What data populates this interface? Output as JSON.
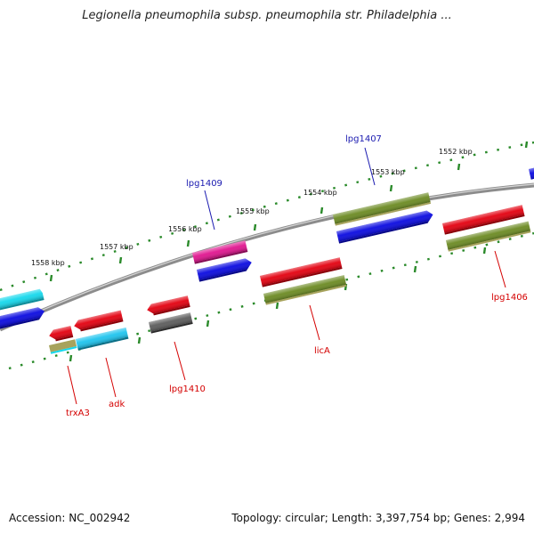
{
  "title": "Legionella pneumophila subsp. pneumophila str. Philadelphia ...",
  "footer": {
    "accession": "Accession: NC_002942",
    "summary": "Topology: circular; Length: 3,397,754 bp; Genes: 2,994"
  },
  "colors": {
    "red": "#e3000f",
    "blue": "#0a0ae0",
    "olive": "#6b8a22",
    "cyan": "#15d8ec",
    "magenta": "#e0158f",
    "gray": "#5c5c5c",
    "khaki": "#a7a35c",
    "sky": "#1ec4ee",
    "backbone": "#8c8c8c",
    "tick": "#2a8a2a",
    "label_red": "#d40000",
    "label_blue": "#1a1ab0"
  },
  "scale_labels": [
    "1558 kbp",
    "1557 kbp",
    "1556 kbp",
    "1555 kbp",
    "1554 kbp",
    "1553 kbp",
    "1552 kbp"
  ],
  "gene_labels": [
    "lpg1407",
    "lpg1409",
    "lpg1406",
    "licA",
    "lpg1410",
    "adk",
    "trxA3"
  ]
}
